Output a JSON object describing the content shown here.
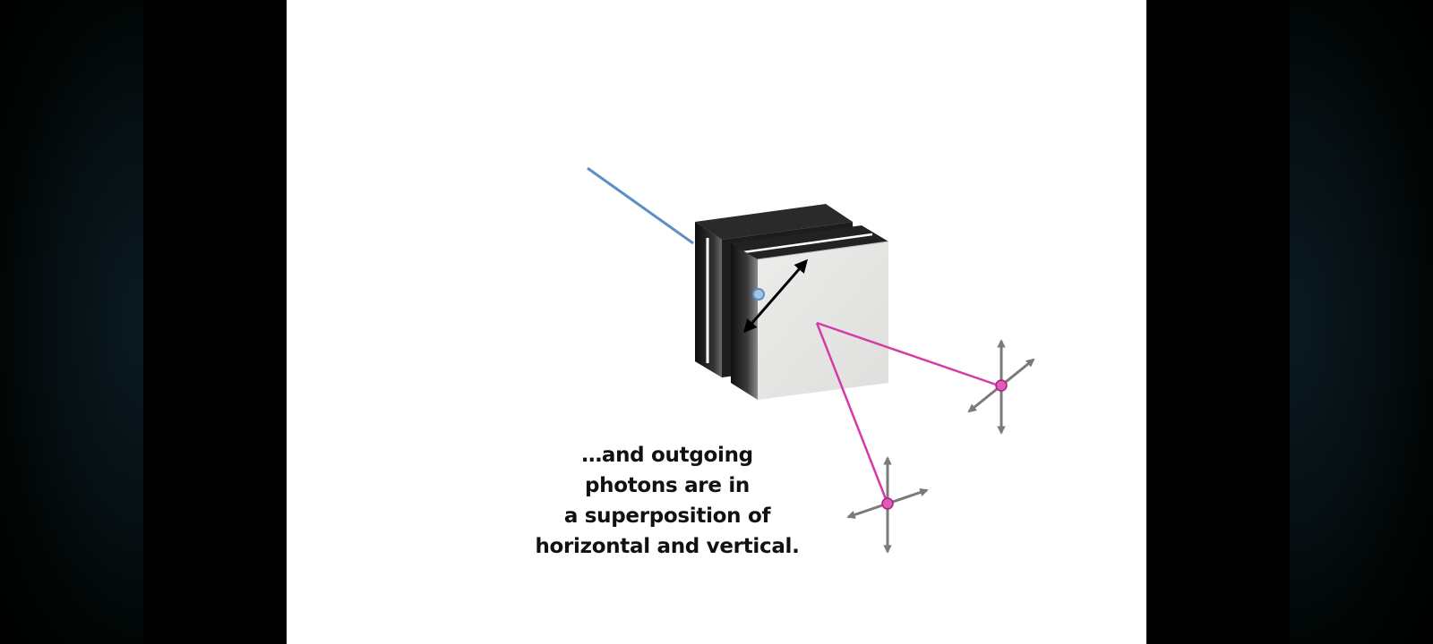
{
  "video_player": {
    "caption_lines": [
      "…and outgoing",
      "photons are in",
      "a superposition of",
      "horizontal and vertical."
    ]
  },
  "colors": {
    "incoming_beam": "#5b8fc4",
    "outgoing_beam": "#d63aa6",
    "polarization_arrows": "#7a7a7a",
    "crystal_face": "#e9eae8",
    "crystal_dark": "#1a1a1a"
  },
  "icons": [
    "polarization-cross-icon",
    "double-arrow-icon"
  ]
}
